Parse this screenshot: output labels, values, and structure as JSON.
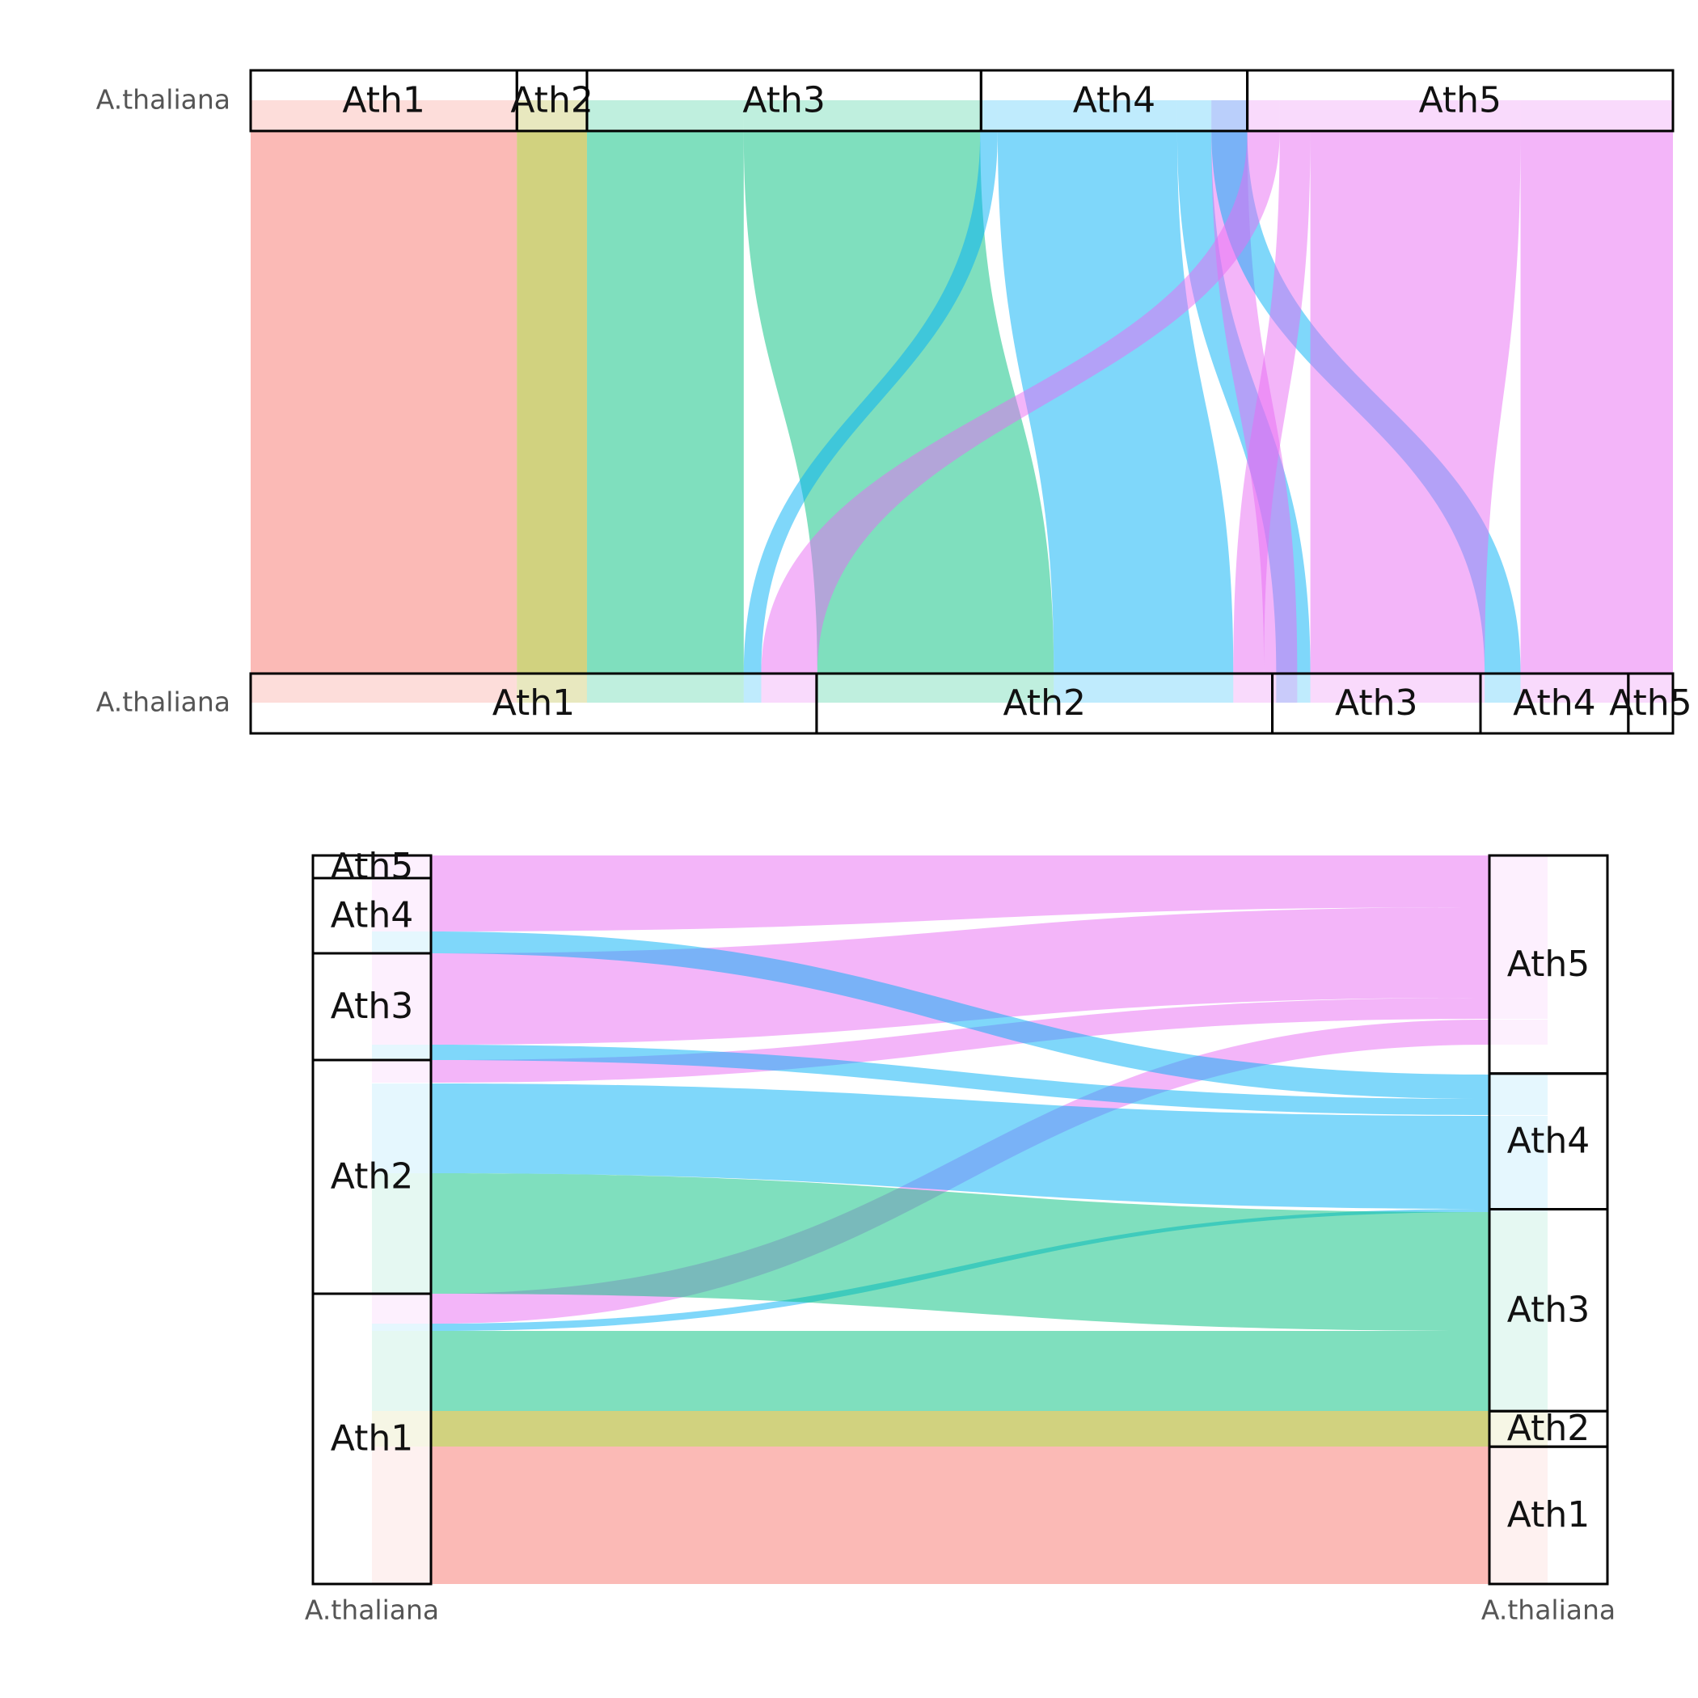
{
  "chart_data": [
    {
      "type": "sankey",
      "orientation": "horizontal",
      "top_genome": "A.thaliana",
      "bottom_genome": "A.thaliana",
      "top_order": [
        "Ath1",
        "Ath2",
        "Ath3",
        "Ath4",
        "Ath5"
      ],
      "bottom_order": [
        "Ath1",
        "Ath2",
        "Ath3",
        "Ath4",
        "Ath5"
      ],
      "top_lengths": {
        "Ath1": 30.4,
        "Ath2": 8.0,
        "Ath3": 45.0,
        "Ath4": 30.4,
        "Ath5": 48.6
      },
      "bottom_lengths": {
        "Ath1": 64.7,
        "Ath2": 52.1,
        "Ath3": 23.8,
        "Ath4": 16.9,
        "Ath5": 5.1
      },
      "link_scale_x": [
        0,
        162.4
      ],
      "flows": [
        {
          "color_group": "Ath1",
          "top": [
            0,
            30.4
          ],
          "bottom": [
            0,
            30.4
          ]
        },
        {
          "color_group": "Ath2",
          "top": [
            30.4,
            38.4
          ],
          "bottom": [
            30.4,
            38.4
          ]
        },
        {
          "color_group": "Ath3",
          "top": [
            38.4,
            56.3
          ],
          "bottom": [
            38.4,
            56.3
          ]
        },
        {
          "color_group": "Ath3",
          "top": [
            56.3,
            83.3
          ],
          "bottom": [
            64.7,
            91.7
          ]
        },
        {
          "color_group": "Ath4",
          "top": [
            83.3,
            85.3
          ],
          "bottom": [
            56.3,
            58.3
          ]
        },
        {
          "color_group": "Ath4",
          "top": [
            85.3,
            105.8
          ],
          "bottom": [
            91.7,
            112.2
          ]
        },
        {
          "color_group": "Ath4",
          "top": [
            105.8,
            109.7
          ],
          "bottom": [
            117.1,
            121.0
          ]
        },
        {
          "color_group": "Ath5",
          "top": [
            109.7,
            113.8
          ],
          "bottom": [
            115.7,
            119.5
          ]
        },
        {
          "color_group": "Ath4",
          "top": [
            109.7,
            113.8
          ],
          "bottom": [
            140.9,
            145.0
          ]
        },
        {
          "color_group": "Ath5",
          "top": [
            113.8,
            117.5
          ],
          "bottom": [
            58.3,
            64.7
          ]
        },
        {
          "color_group": "Ath5",
          "top": [
            117.5,
            121.0
          ],
          "bottom": [
            112.2,
            115.7
          ]
        },
        {
          "color_group": "Ath5",
          "top": [
            121.0,
            145.0
          ],
          "bottom": [
            121.0,
            140.9
          ]
        },
        {
          "color_group": "Ath5",
          "top": [
            145.0,
            162.4
          ],
          "bottom": [
            145.0,
            162.4
          ]
        }
      ],
      "colors": {
        "Ath1": "#F8766D",
        "Ath2": "#A3A500",
        "Ath3": "#00BF7D",
        "Ath4": "#00B0F6",
        "Ath5": "#E76BF3"
      }
    },
    {
      "type": "sankey",
      "orientation": "vertical",
      "left_genome": "A.thaliana",
      "right_genome": "A.thaliana",
      "left_order": [
        "Ath1",
        "Ath2",
        "Ath3",
        "Ath4",
        "Ath5"
      ],
      "right_order": [
        "Ath1",
        "Ath2",
        "Ath3",
        "Ath4",
        "Ath5"
      ],
      "left_lengths": {
        "Ath1": 35.9,
        "Ath2": 28.9,
        "Ath3": 13.2,
        "Ath4": 9.3,
        "Ath5": 2.8
      },
      "right_lengths": {
        "Ath1": 17.0,
        "Ath2": 4.4,
        "Ath3": 25.0,
        "Ath4": 16.8,
        "Ath5": 27.0
      },
      "link_scale": [
        0,
        90.1
      ],
      "flows": [
        {
          "color_group": "Ath1",
          "left": [
            0,
            17.0
          ],
          "right": [
            0,
            17.0
          ]
        },
        {
          "color_group": "Ath2",
          "left": [
            17.0,
            21.4
          ],
          "right": [
            17.0,
            21.4
          ]
        },
        {
          "color_group": "Ath3",
          "left": [
            21.4,
            31.3
          ],
          "right": [
            21.4,
            31.3
          ]
        },
        {
          "color_group": "Ath4",
          "left": [
            31.3,
            32.2
          ],
          "right": [
            46.0,
            46.4
          ]
        },
        {
          "color_group": "Ath5",
          "left": [
            32.2,
            35.9
          ],
          "right": [
            66.7,
            69.8
          ]
        },
        {
          "color_group": "Ath3",
          "left": [
            35.9,
            50.8
          ],
          "right": [
            31.3,
            46.0
          ]
        },
        {
          "color_group": "Ath4",
          "left": [
            50.8,
            61.9
          ],
          "right": [
            46.4,
            57.9
          ]
        },
        {
          "color_group": "Ath5",
          "left": [
            62.0,
            64.8
          ],
          "right": [
            69.9,
            72.5
          ]
        },
        {
          "color_group": "Ath4",
          "left": [
            64.8,
            66.7
          ],
          "right": [
            58.0,
            60.0
          ]
        },
        {
          "color_group": "Ath5",
          "left": [
            66.7,
            78.0
          ],
          "right": [
            72.5,
            83.7
          ]
        },
        {
          "color_group": "Ath4",
          "left": [
            78.0,
            80.7
          ],
          "right": [
            60.0,
            63.0
          ]
        },
        {
          "color_group": "Ath5",
          "left": [
            80.7,
            90.1
          ],
          "right": [
            83.7,
            90.1
          ]
        }
      ],
      "colors": {
        "Ath1": "#F8766D",
        "Ath2": "#A3A500",
        "Ath3": "#00BF7D",
        "Ath4": "#00B0F6",
        "Ath5": "#E76BF3"
      }
    }
  ]
}
